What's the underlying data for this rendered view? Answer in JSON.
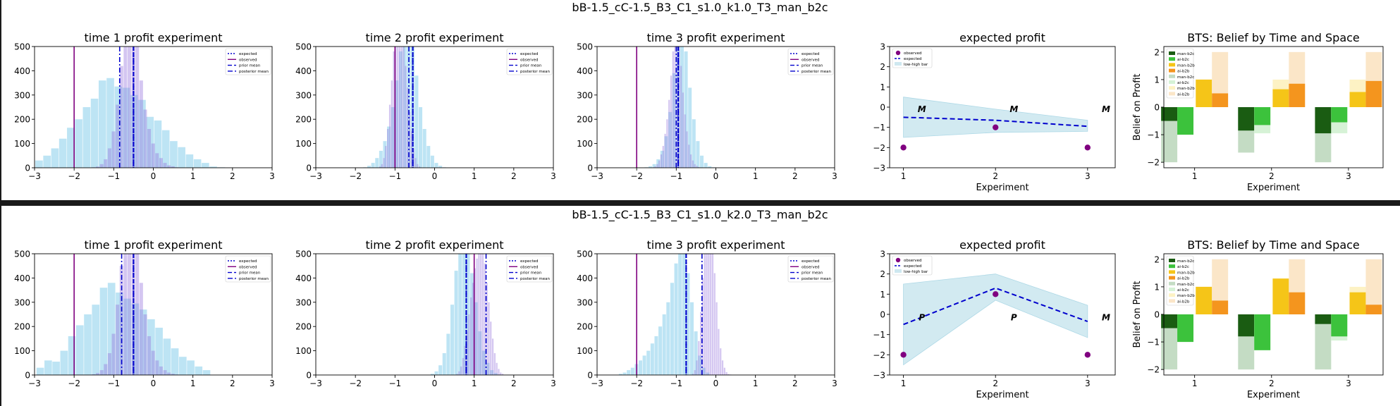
{
  "figures": [
    {
      "suptitle": "bB-1.5_cC-1.5_B3_C1_s1.0_k1.0_T3_man_b2c",
      "hist_panels": [
        {
          "title": "time 1 profit experiment",
          "xlim": [
            -3,
            3
          ],
          "ylim": [
            0,
            500
          ],
          "xticks": [
            -3,
            -2,
            -1,
            0,
            1,
            2,
            3
          ],
          "yticks": [
            0,
            100,
            200,
            300,
            400,
            500
          ],
          "lines": {
            "observed": -2.0,
            "expected": -0.5,
            "prior_mean": -0.5,
            "posterior_mean": -0.85
          },
          "bins": {
            "prior": {
              "start": -2.98,
              "width": 0.2,
              "counts": [
                30,
                50,
                80,
                120,
                165,
                200,
                250,
                285,
                360,
                370,
                335,
                330,
                300,
                280,
                210,
                195,
                155,
                110,
                85,
                55,
                35,
                20,
                5,
                2
              ]
            },
            "posterior": {
              "start": -1.55,
              "width": 0.1,
              "counts": [
                2,
                5,
                15,
                35,
                80,
                150,
                260,
                420,
                500,
                500,
                500,
                500,
                360,
                240,
                160,
                100,
                60,
                40,
                20,
                10,
                6,
                2,
                1
              ]
            }
          }
        },
        {
          "title": "time 2 profit experiment",
          "xlim": [
            -3,
            3
          ],
          "ylim": [
            0,
            500
          ],
          "xticks": [
            -3,
            -2,
            -1,
            0,
            1,
            2,
            3
          ],
          "yticks": [
            0,
            100,
            200,
            300,
            400,
            500
          ],
          "lines": {
            "observed": -1.0,
            "expected": -0.55,
            "prior_mean": -0.55,
            "posterior_mean": -0.65
          },
          "bins": {
            "prior": {
              "start": -1.8,
              "width": 0.1,
              "counts": [
                2,
                8,
                20,
                40,
                70,
                110,
                170,
                250,
                360,
                480,
                500,
                500,
                500,
                380,
                250,
                160,
                90,
                50,
                20,
                8,
                2
              ]
            },
            "posterior": {
              "start": -1.4,
              "width": 0.05,
              "counts": [
                5,
                15,
                40,
                90,
                160,
                260,
                360,
                480,
                500,
                500,
                500,
                500,
                500,
                420,
                330,
                230,
                150,
                80,
                40,
                15,
                5
              ]
            }
          }
        },
        {
          "title": "time 3 profit experiment",
          "xlim": [
            -3,
            3
          ],
          "ylim": [
            0,
            500
          ],
          "xticks": [
            -3,
            -2,
            -1,
            0,
            1,
            2,
            3
          ],
          "yticks": [
            0,
            100,
            200,
            300,
            400,
            500
          ],
          "lines": {
            "observed": -2.0,
            "expected": -0.95,
            "prior_mean": -0.95,
            "posterior_mean": -1.0
          },
          "bins": {
            "prior": {
              "start": -1.8,
              "width": 0.1,
              "counts": [
                2,
                6,
                15,
                35,
                70,
                130,
                230,
                390,
                500,
                500,
                480,
                330,
                200,
                110,
                50,
                20,
                6,
                2
              ]
            },
            "posterior": {
              "start": -1.6,
              "width": 0.05,
              "counts": [
                2,
                6,
                15,
                30,
                55,
                90,
                140,
                200,
                280,
                380,
                480,
                500,
                500,
                500,
                420,
                310,
                220,
                150,
                95,
                55,
                30,
                15,
                8,
                3
              ]
            }
          }
        }
      ],
      "expected_profit": {
        "title": "expected profit",
        "xlabel": "Experiment",
        "xlim": [
          0.85,
          3.3
        ],
        "ylim": [
          -3,
          3
        ],
        "xticks": [
          1,
          2,
          3
        ],
        "yticks": [
          -3,
          -2,
          -1,
          0,
          1,
          2,
          3
        ],
        "experiments": [
          1,
          2,
          3
        ],
        "observed": [
          -2,
          -1,
          -2
        ],
        "expected": [
          -0.5,
          -0.65,
          -0.95
        ],
        "low": [
          -1.5,
          -1.25,
          -1.2
        ],
        "high": [
          0.5,
          -0.1,
          -0.65
        ],
        "markers": [
          {
            "x": 1.2,
            "y": -0.25,
            "text": "M"
          },
          {
            "x": 2.2,
            "y": -0.25,
            "text": "M"
          },
          {
            "x": 3.2,
            "y": -0.25,
            "text": "M"
          }
        ],
        "legend": [
          "observed",
          "expected",
          "low-high bar"
        ]
      },
      "bts": {
        "title": "BTS: Belief by Time and Space",
        "xlabel": "Experiment",
        "ylabel": "Belief on Profit",
        "xlim": [
          0.6,
          3.45
        ],
        "ylim": [
          -2.2,
          2.2
        ],
        "xticks": [
          1,
          2,
          3
        ],
        "yticks": [
          -2,
          -1,
          0,
          1,
          2
        ],
        "legend": [
          "man-b2c",
          "ai-b2c",
          "man-b2b",
          "ai-b2b",
          "man-b2c",
          "ai-b2c",
          "man-b2b",
          "ai-b2b"
        ],
        "groups": [
          {
            "man_b2c": -0.5,
            "ai_b2c": -1.0,
            "man_b2b": 1.0,
            "ai_b2b": 0.5,
            "man_b2c_light": -2.0,
            "ai_b2c_light": -1.0,
            "man_b2b_light": 1.0,
            "ai_b2b_light": 2.0
          },
          {
            "man_b2c": -0.85,
            "ai_b2c": -0.65,
            "man_b2b": 0.65,
            "ai_b2b": 0.85,
            "man_b2c_light": -1.65,
            "ai_b2c_light": -0.95,
            "man_b2b_light": 1.0,
            "ai_b2b_light": 2.0
          },
          {
            "man_b2c": -0.95,
            "ai_b2c": -0.55,
            "man_b2b": 0.55,
            "ai_b2b": 0.95,
            "man_b2c_light": -2.0,
            "ai_b2c_light": -0.95,
            "man_b2b_light": 1.0,
            "ai_b2b_light": 2.0
          }
        ]
      }
    },
    {
      "suptitle": "bB-1.5_cC-1.5_B3_C1_s1.0_k2.0_T3_man_b2c",
      "hist_panels": [
        {
          "title": "time 1 profit experiment",
          "xlim": [
            -3,
            3
          ],
          "ylim": [
            0,
            500
          ],
          "xticks": [
            -3,
            -2,
            -1,
            0,
            1,
            2,
            3
          ],
          "yticks": [
            0,
            100,
            200,
            300,
            400,
            500
          ],
          "lines": {
            "observed": -2.0,
            "expected": -0.5,
            "prior_mean": -0.5,
            "posterior_mean": -0.8
          },
          "bins": {
            "prior": {
              "start": -2.95,
              "width": 0.2,
              "counts": [
                30,
                60,
                55,
                100,
                160,
                205,
                250,
                290,
                360,
                380,
                340,
                315,
                295,
                270,
                230,
                195,
                150,
                110,
                75,
                60,
                35,
                20
              ]
            },
            "posterior": {
              "start": -1.55,
              "width": 0.1,
              "counts": [
                3,
                8,
                20,
                45,
                90,
                170,
                290,
                450,
                500,
                500,
                500,
                500,
                380,
                250,
                160,
                100,
                60,
                35,
                20,
                10,
                5,
                2
              ]
            }
          }
        },
        {
          "title": "time 2 profit experiment",
          "xlim": [
            -3,
            3
          ],
          "ylim": [
            0,
            500
          ],
          "xticks": [
            -3,
            -2,
            -1,
            0,
            1,
            2,
            3
          ],
          "yticks": [
            0,
            100,
            200,
            300,
            400,
            500
          ],
          "lines": {
            "observed": 1.0,
            "expected": 0.8,
            "prior_mean": 0.8,
            "posterior_mean": 1.3
          },
          "bins": {
            "prior": {
              "start": -0.1,
              "width": 0.1,
              "counts": [
                5,
                15,
                40,
                90,
                170,
                290,
                430,
                500,
                500,
                500,
                420,
                300,
                180,
                100,
                50,
                20,
                8,
                2
              ]
            },
            "posterior": {
              "start": 0.55,
              "width": 0.05,
              "counts": [
                5,
                15,
                35,
                70,
                120,
                180,
                250,
                320,
                380,
                440,
                480,
                500,
                500,
                500,
                460,
                380,
                300,
                220,
                150,
                90,
                50,
                25,
                10,
                5
              ]
            }
          }
        },
        {
          "title": "time 3 profit experiment",
          "xlim": [
            -3,
            3
          ],
          "ylim": [
            0,
            500
          ],
          "xticks": [
            -3,
            -2,
            -1,
            0,
            1,
            2,
            3
          ],
          "yticks": [
            0,
            100,
            200,
            300,
            400,
            500
          ],
          "lines": {
            "observed": -2.0,
            "expected": -0.75,
            "prior_mean": -0.75,
            "posterior_mean": -0.35
          },
          "bins": {
            "prior": {
              "start": -2.45,
              "width": 0.1,
              "counts": [
                5,
                10,
                20,
                30,
                45,
                60,
                80,
                100,
                130,
                160,
                200,
                250,
                300,
                380,
                460,
                500,
                500,
                420,
                300,
                180,
                80,
                30,
                10
              ]
            },
            "posterior": {
              "start": -0.6,
              "width": 0.05,
              "counts": [
                5,
                20,
                60,
                140,
                260,
                400,
                500,
                500,
                500,
                500,
                500,
                420,
                300,
                190,
                110,
                60,
                30,
                12,
                4,
                2
              ]
            }
          }
        }
      ],
      "expected_profit": {
        "title": "expected profit",
        "xlabel": "Experiment",
        "xlim": [
          0.85,
          3.3
        ],
        "ylim": [
          -3,
          3
        ],
        "xticks": [
          1,
          2,
          3
        ],
        "yticks": [
          -3,
          -2,
          -1,
          0,
          1,
          2,
          3
        ],
        "experiments": [
          1,
          2,
          3
        ],
        "observed": [
          -2,
          1,
          -2
        ],
        "expected": [
          -0.5,
          1.3,
          -0.35
        ],
        "low": [
          -2.5,
          0.7,
          -1.15
        ],
        "high": [
          1.5,
          2.0,
          0.45
        ],
        "markers": [
          {
            "x": 1.2,
            "y": -0.3,
            "text": "P"
          },
          {
            "x": 2.2,
            "y": -0.3,
            "text": "P"
          },
          {
            "x": 3.2,
            "y": -0.3,
            "text": "M"
          }
        ],
        "legend": [
          "observed",
          "expected",
          "low-high bar"
        ]
      },
      "bts": {
        "title": "BTS: Belief by Time and Space",
        "xlabel": "Experiment",
        "ylabel": "Belief on Profit",
        "xlim": [
          0.6,
          3.45
        ],
        "ylim": [
          -2.2,
          2.2
        ],
        "xticks": [
          1,
          2,
          3
        ],
        "yticks": [
          -2,
          -1,
          0,
          1,
          2
        ],
        "legend": [
          "man-b2c",
          "ai-b2c",
          "man-b2b",
          "ai-b2b",
          "man-b2c",
          "ai-b2c",
          "man-b2b",
          "ai-b2b"
        ],
        "groups": [
          {
            "man_b2c": -0.5,
            "ai_b2c": -1.0,
            "man_b2b": 1.0,
            "ai_b2b": 0.5,
            "man_b2c_light": -2.0,
            "ai_b2c_light": -1.0,
            "man_b2b_light": 1.0,
            "ai_b2b_light": 2.0
          },
          {
            "man_b2c": -0.8,
            "ai_b2c": -1.3,
            "man_b2b": 1.3,
            "ai_b2b": 0.8,
            "man_b2c_light": -2.0,
            "ai_b2c_light": -1.3,
            "man_b2b_light": 1.3,
            "ai_b2b_light": 2.0
          },
          {
            "man_b2c": -0.35,
            "ai_b2c": -0.8,
            "man_b2b": 0.8,
            "ai_b2b": 0.35,
            "man_b2c_light": -2.0,
            "ai_b2c_light": -0.95,
            "man_b2b_light": 1.0,
            "ai_b2b_light": 2.0
          }
        ]
      }
    }
  ],
  "legend_labels": {
    "expected": "expected",
    "observed": "observed",
    "prior_mean": "prior mean",
    "posterior_mean": "posterior mean"
  },
  "colors": {
    "prior_hist": "#87ceeb",
    "posterior_hist": "#9370db",
    "observed_line": "#800080",
    "expected_line": "#0000cd",
    "band": "#add8e6",
    "marker_text": "#ff0000",
    "scatter": "#800080",
    "man_b2c": "#1a5c12",
    "ai_b2c": "#3cc23c",
    "man_b2b": "#f5c518",
    "ai_b2b": "#f4951e",
    "man_b2c_light": "#c4dcc4",
    "ai_b2c_light": "#d6f2d6",
    "man_b2b_light": "#fdf2c4",
    "ai_b2b_light": "#fbe6c8",
    "divider": "#1a1a1a"
  }
}
